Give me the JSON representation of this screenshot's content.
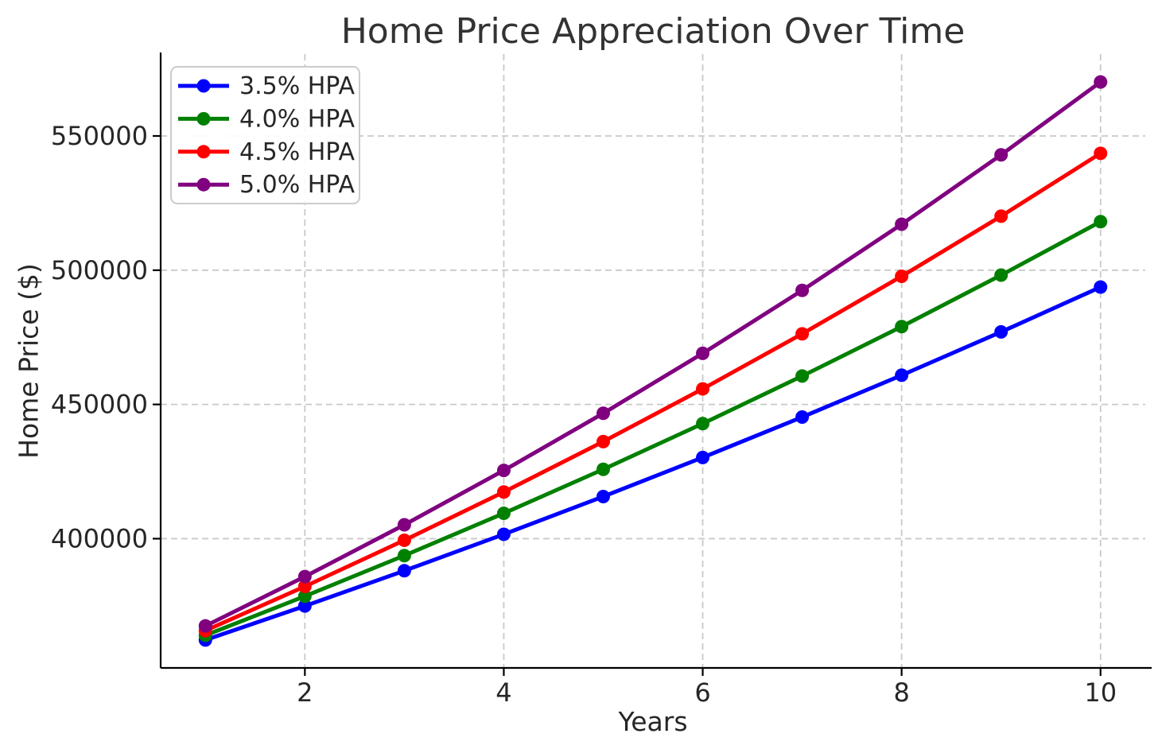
{
  "chart_data": {
    "type": "line",
    "title": "Home Price Appreciation Over Time",
    "xlabel": "Years",
    "ylabel": "Home Price ($)",
    "x": [
      1,
      2,
      3,
      4,
      5,
      6,
      7,
      8,
      9,
      10
    ],
    "series": [
      {
        "name": "3.5% HPA",
        "color": "#0000ff",
        "values": [
          362250,
          374929,
          388051,
          401633,
          415690,
          430239,
          445298,
          460883,
          477014,
          493710
        ]
      },
      {
        "name": "4.0% HPA",
        "color": "#008000",
        "values": [
          364000,
          378560,
          393702,
          409450,
          425829,
          442862,
          460576,
          478999,
          498159,
          518086
        ]
      },
      {
        "name": "4.5% HPA",
        "color": "#ff0000",
        "values": [
          365750,
          382209,
          399408,
          417382,
          436164,
          455791,
          476302,
          497735,
          520133,
          543539
        ]
      },
      {
        "name": "5.0% HPA",
        "color": "#800080",
        "values": [
          367500,
          385875,
          405169,
          425427,
          446699,
          469033,
          492485,
          517109,
          542965,
          570113
        ]
      }
    ],
    "xticks": [
      2,
      4,
      6,
      8,
      10
    ],
    "yticks": [
      400000,
      450000,
      500000,
      550000
    ],
    "xlim": [
      0.55,
      10.45
    ],
    "ylim": [
      351857,
      580506
    ],
    "grid": true,
    "grid_style": "dashed",
    "grid_color": "#c9c9c9",
    "legend_position": "upper left",
    "axis_color": "#000000",
    "tick_label_color": "#262626",
    "title_color": "#333333"
  }
}
